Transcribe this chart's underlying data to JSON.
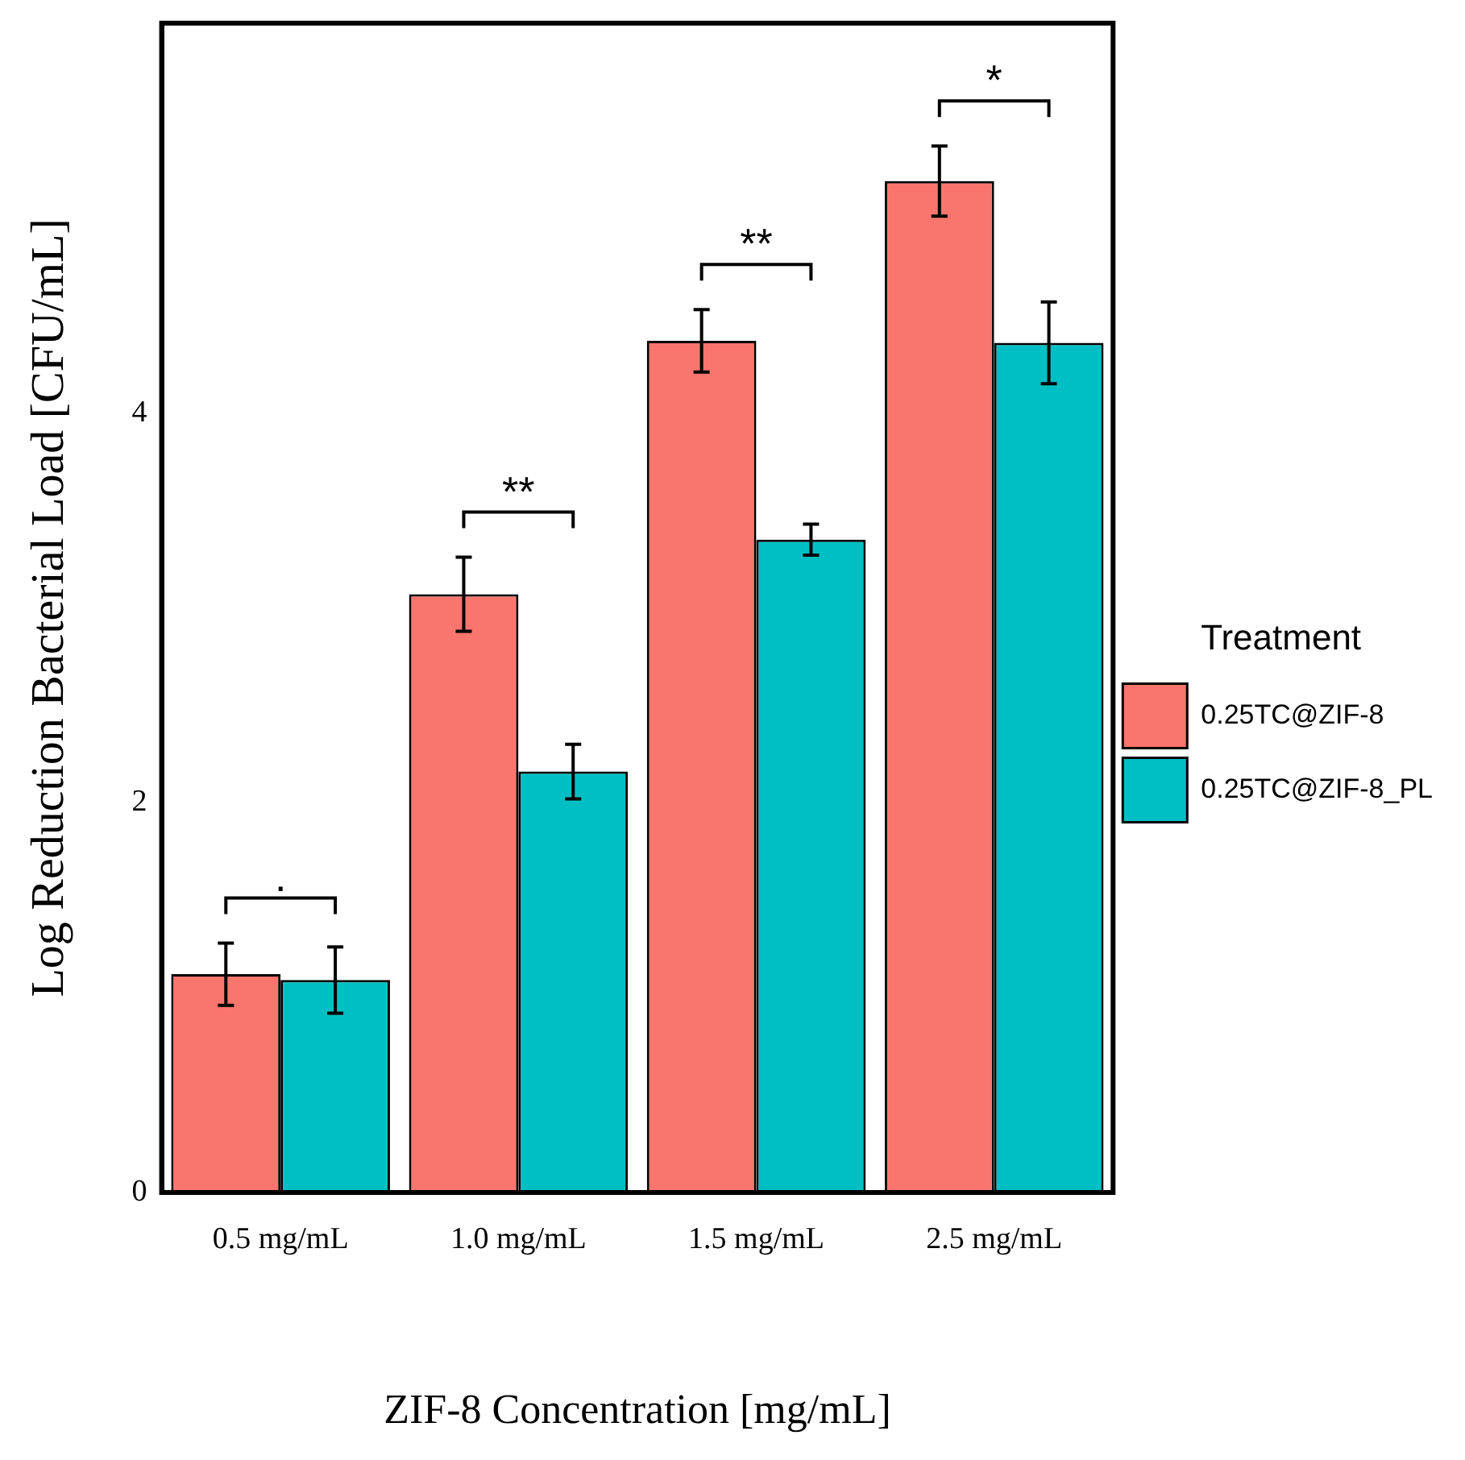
{
  "chart_data": {
    "type": "bar",
    "xlabel": "ZIF-8 Concentration [mg/mL]",
    "ylabel": "Log Reduction Bacterial Load [CFU/mL]",
    "legend_title": "Treatment",
    "legend": "right",
    "grid": false,
    "categories": [
      "0.5 mg/mL",
      "1.0 mg/mL",
      "1.5 mg/mL",
      "2.5 mg/mL"
    ],
    "series": [
      {
        "name": "0.25TC@ZIF-8",
        "color": "#f8766d",
        "values": [
          1.12,
          3.07,
          4.37,
          5.19
        ],
        "errors": [
          0.16,
          0.19,
          0.16,
          0.18
        ]
      },
      {
        "name": "0.25TC@ZIF-8_PL",
        "color": "#00bfc4",
        "values": [
          1.09,
          2.16,
          3.35,
          4.36
        ],
        "errors": [
          0.17,
          0.14,
          0.08,
          0.21
        ]
      }
    ],
    "ylim": [
      0,
      6
    ],
    "yticks": [
      0,
      2,
      4
    ],
    "annotations": [
      ".",
      "**",
      "**",
      "*"
    ]
  }
}
